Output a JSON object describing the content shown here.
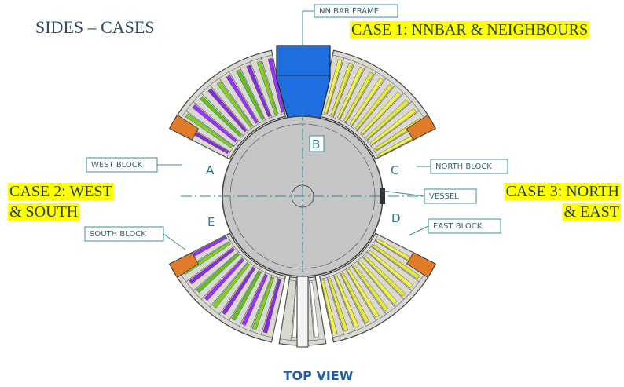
{
  "title": "SIDES – CASES",
  "cases": [
    {
      "lines": [
        "CASE 1: NNBAR & NEIGHBOURS"
      ]
    },
    {
      "lines": [
        "CASE 2: WEST",
        "& SOUTH"
      ]
    },
    {
      "lines": [
        "CASE 3: NORTH",
        "& EAST"
      ]
    }
  ],
  "callouts": [
    "NN BAR FRAME",
    "WEST BLOCK",
    "NORTH BLOCK",
    "VESSEL",
    "SOUTH BLOCK",
    "EAST BLOCK"
  ],
  "points": [
    "A",
    "B",
    "C",
    "D",
    "E"
  ],
  "footer": "TOP VIEW"
}
